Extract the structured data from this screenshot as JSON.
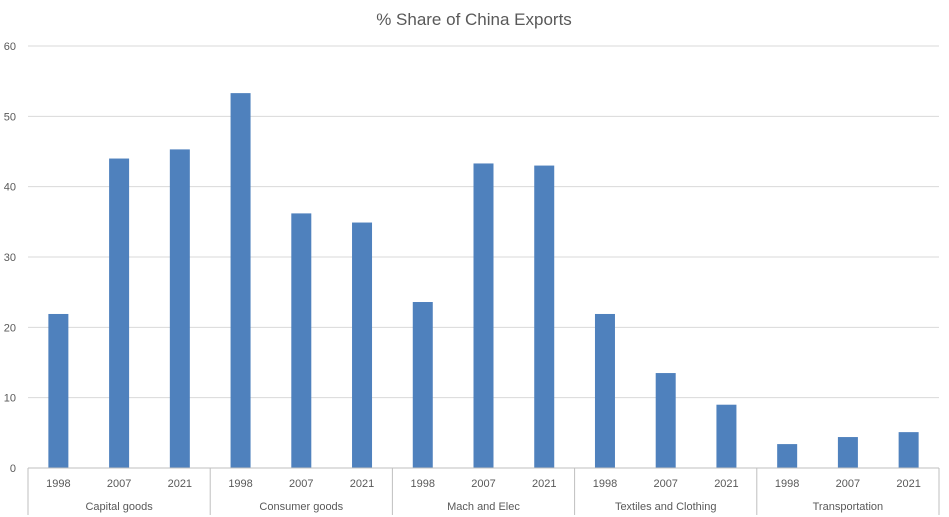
{
  "chart_data": {
    "type": "bar",
    "title": "% Share of China Exports",
    "groups": [
      "Capital goods",
      "Consumer goods",
      "Mach and Elec",
      "Textiles and Clothing",
      "Transportation"
    ],
    "sub_categories": [
      "1998",
      "2007",
      "2021"
    ],
    "series": [
      {
        "values": [
          21.9,
          44.0,
          45.3,
          53.3,
          36.2,
          34.9,
          23.6,
          43.3,
          43.0,
          21.9,
          13.5,
          9.0,
          3.4,
          4.4,
          5.1
        ]
      }
    ],
    "ylim": [
      0,
      60
    ],
    "y_ticks": [
      0,
      10,
      20,
      30,
      40,
      50,
      60
    ],
    "grid": true,
    "legend": "none",
    "bar_color": "#4f81bd"
  }
}
